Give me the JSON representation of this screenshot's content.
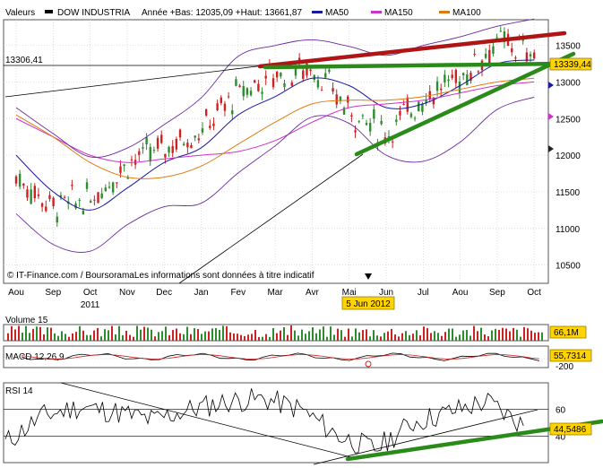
{
  "legend": {
    "valeurs": "Valeurs",
    "instrument": "DOW INDUSTRIA",
    "range_text": "Année +Bas: 12035,09 +Haut: 13661,87",
    "ma50": "MA50",
    "ma150": "MA150",
    "ma100": "MA100"
  },
  "colors": {
    "price": "#2e8b2e",
    "down": "#cc2222",
    "ma50": "#1a1aa0",
    "ma150": "#cc33cc",
    "ma100": "#e07a10",
    "bollinger": "#6a2aa0",
    "trend_green": "#2a8a1a",
    "trend_red": "#b01515",
    "grid": "#d0d0d0",
    "label_bg": "#ffd400"
  },
  "annotations": {
    "level_label": "13306,41",
    "last_price": "13339,44",
    "source": "© IT-Finance.com / BoursoramaLes informations sont données à titre indicatif",
    "date_marker": "5 Jun 2012",
    "year_label": "2011"
  },
  "chart_data": [
    {
      "type": "line",
      "name": "price",
      "x": [
        "Aou",
        "Sep",
        "Oct",
        "Nov",
        "Dec",
        "Jan",
        "Fev",
        "Mar",
        "Avr",
        "Mai",
        "Jun",
        "Jul",
        "Aou",
        "Sep",
        "Oct"
      ],
      "xlabel": "",
      "ylabel": "",
      "yticks": [
        10500,
        11000,
        11500,
        12000,
        12500,
        13000,
        13500
      ],
      "ylim": [
        10250,
        13850
      ],
      "series": [
        {
          "name": "DOW INDUSTRIA",
          "values": [
            11700,
            11300,
            11400,
            11900,
            12100,
            12350,
            12850,
            13100,
            13200,
            12600,
            12300,
            12800,
            13050,
            13550,
            13400
          ]
        },
        {
          "name": "MA50",
          "values": [
            12000,
            11500,
            11250,
            11550,
            11900,
            12100,
            12550,
            12800,
            13050,
            12950,
            12650,
            12700,
            12950,
            13250,
            13300
          ]
        },
        {
          "name": "MA150",
          "values": [
            12500,
            12250,
            12000,
            11900,
            11950,
            12000,
            12050,
            12200,
            12450,
            12650,
            12700,
            12750,
            12850,
            12950,
            13000
          ]
        },
        {
          "name": "MA100",
          "values": [
            12550,
            12250,
            11900,
            11700,
            11700,
            11850,
            12150,
            12450,
            12700,
            12750,
            12750,
            12800,
            12900,
            13000,
            13050
          ]
        }
      ]
    },
    {
      "type": "bar",
      "title": "Volume 15",
      "last_value": "66,1M"
    },
    {
      "type": "line",
      "title": "MACD 12,26,9",
      "last_value": "55,7314",
      "yticks": [
        -200
      ]
    },
    {
      "type": "line",
      "title": "RSI 14",
      "last_value": "44,5486",
      "yticks": [
        60,
        40
      ],
      "values": [
        35,
        55,
        62,
        58,
        52,
        60,
        66,
        68,
        60,
        40,
        30,
        50,
        58,
        66,
        48
      ]
    }
  ]
}
